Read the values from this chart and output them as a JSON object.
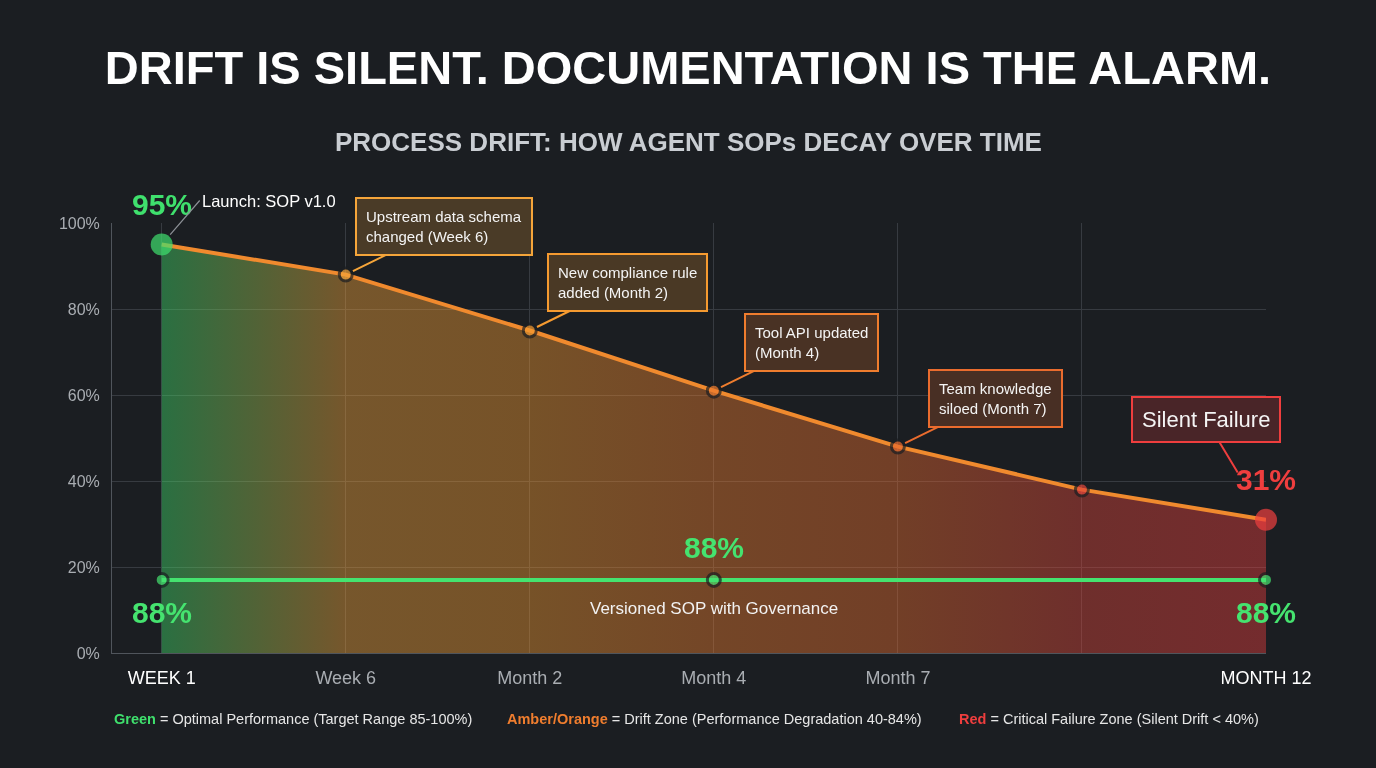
{
  "chart_data": {
    "type": "line",
    "title": "DRIFT IS SILENT. DOCUMENTATION IS THE ALARM.",
    "subtitle": "PROCESS DRIFT: HOW AGENT SOPs DECAY OVER TIME",
    "categories": [
      "WEEK 1",
      "Week 6",
      "Month 2",
      "Month 4",
      "Month 7",
      null,
      "MONTH 12"
    ],
    "series": [
      {
        "type": "area",
        "color": "#f08a2e",
        "colors": [
          "#3fe06d",
          "#f5a53a",
          "#f59a30",
          "#ef7d2e",
          "#ea6c2e",
          "#e2463a",
          "#ef3e3e"
        ],
        "values": [
          95,
          88,
          75,
          61,
          48,
          38,
          31
        ],
        "value_labels": [
          "95%",
          null,
          null,
          null,
          null,
          null,
          "31%"
        ]
      },
      {
        "name": "Versioned SOP with Governance",
        "color": "#45e36f",
        "x": [
          "WEEK 1",
          "Month 4",
          "MONTH 12"
        ],
        "values": [
          17,
          17,
          17
        ]
      }
    ],
    "ylim": [
      0,
      100
    ],
    "yticks": [
      {
        "value": 0,
        "label": "0%"
      },
      {
        "value": 20,
        "label": "20%"
      },
      {
        "value": 40,
        "label": "40%"
      },
      {
        "value": 60,
        "label": "60%"
      },
      {
        "value": 80,
        "label": "80%"
      },
      {
        "value": 100,
        "label": "100%"
      }
    ],
    "grid": true,
    "legend": false,
    "marker": "circle",
    "line_style": "solid",
    "annotations": [
      {
        "text": "Launch: SOP v1.0",
        "x": "WEEK 1",
        "y": 95
      },
      {
        "text": "Upstream data schema changed (Week 6)",
        "x": "Week 6",
        "y": 88
      },
      {
        "text": "New compliance rule added (Month 2)",
        "x": "Month 2",
        "y": 75
      },
      {
        "text": "Tool API updated (Month 4)",
        "x": "Month 4",
        "y": 61
      },
      {
        "text": "Team knowledge siloed (Month 7)",
        "x": "Month 7",
        "y": 48
      },
      {
        "text": "Silent Failure",
        "x": "MONTH 12",
        "y": 31
      },
      {
        "text": "88%",
        "x": "WEEK 1",
        "y": 17
      },
      {
        "text": "88%",
        "x": "Month 4",
        "y": 17
      },
      {
        "text": "88%",
        "x": "MONTH 12",
        "y": 17
      },
      "Green = Optimal Performance (Target Range 85-100%)",
      "Amber/Orange = Drift Zone (Performance Degradation 40-84%)",
      "Red = Critical Failure Zone (Silent Drift < 40%)"
    ]
  }
}
